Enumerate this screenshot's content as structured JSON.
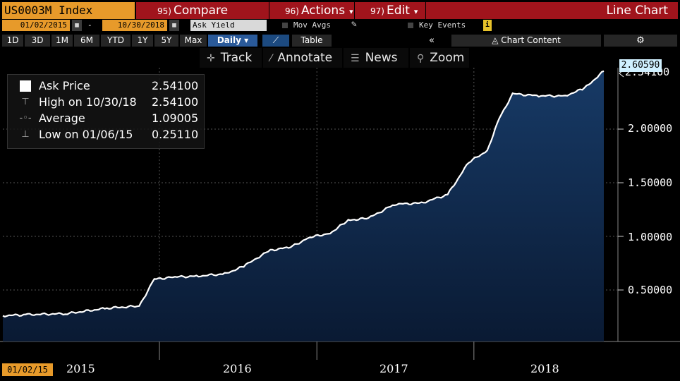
{
  "header": {
    "ticker": "US0003M Index",
    "compare_num": "95)",
    "compare_label": "Compare",
    "actions_num": "96)",
    "actions_label": "Actions",
    "edit_num": "97)",
    "edit_label": "Edit",
    "view_label": "Line Chart"
  },
  "controls": {
    "start_date": "01/02/2015",
    "end_date": "10/30/2018",
    "dash": "-",
    "field": "Ask Yield",
    "mov_avgs": "Mov Avgs",
    "key_events": "Key Events"
  },
  "ranges": [
    "1D",
    "3D",
    "1M",
    "6M",
    "YTD",
    "1Y",
    "5Y",
    "Max"
  ],
  "frequency": "Daily",
  "tabs": {
    "table": "Table",
    "chart_content": "Chart Content"
  },
  "toolbar": {
    "track": "Track",
    "annotate": "Annotate",
    "news": "News",
    "zoom": "Zoom"
  },
  "legend": {
    "ask": {
      "name": "Ask Price",
      "value": "2.54100"
    },
    "high": {
      "name": "High on 10/30/18",
      "value": "2.54100"
    },
    "avg": {
      "name": "Average",
      "value": "1.09005"
    },
    "low": {
      "name": "Low on 01/06/15",
      "value": "0.25110"
    }
  },
  "axis": {
    "last_value_label": "2.60590",
    "ask_value_label": "2.54100",
    "y_ticks": [
      "2.00000",
      "1.50000",
      "1.00000",
      "0.50000"
    ],
    "x_labels": [
      "2015",
      "2016",
      "2017",
      "2018"
    ],
    "start_date_badge": "01/02/15"
  },
  "colors": {
    "orange": "#e79a2a",
    "red": "#a0141c",
    "area_fill_top": "#173a66",
    "area_fill_bottom": "#0a1a33",
    "line": "#ffffff"
  },
  "chart_data": {
    "type": "area",
    "series": [
      {
        "name": "Ask Price",
        "x": [
          "2015-01-02",
          "2015-03-01",
          "2015-06-01",
          "2015-09-01",
          "2015-11-15",
          "2015-12-20",
          "2016-02-01",
          "2016-04-01",
          "2016-06-01",
          "2016-07-15",
          "2016-08-15",
          "2016-09-15",
          "2016-11-01",
          "2016-12-15",
          "2017-02-01",
          "2017-03-15",
          "2017-05-01",
          "2017-07-01",
          "2017-09-01",
          "2017-11-01",
          "2017-12-20",
          "2018-02-01",
          "2018-03-01",
          "2018-04-01",
          "2018-06-01",
          "2018-08-01",
          "2018-09-15",
          "2018-10-30"
        ],
        "y": [
          0.26,
          0.27,
          0.28,
          0.33,
          0.35,
          0.6,
          0.62,
          0.63,
          0.65,
          0.72,
          0.8,
          0.87,
          0.9,
          0.99,
          1.03,
          1.15,
          1.17,
          1.3,
          1.31,
          1.39,
          1.69,
          1.8,
          2.1,
          2.33,
          2.31,
          2.31,
          2.38,
          2.541
        ]
      }
    ],
    "ylim": [
      0.2,
      2.7
    ],
    "y_ticks": [
      0.5,
      1.0,
      1.5,
      2.0
    ]
  }
}
